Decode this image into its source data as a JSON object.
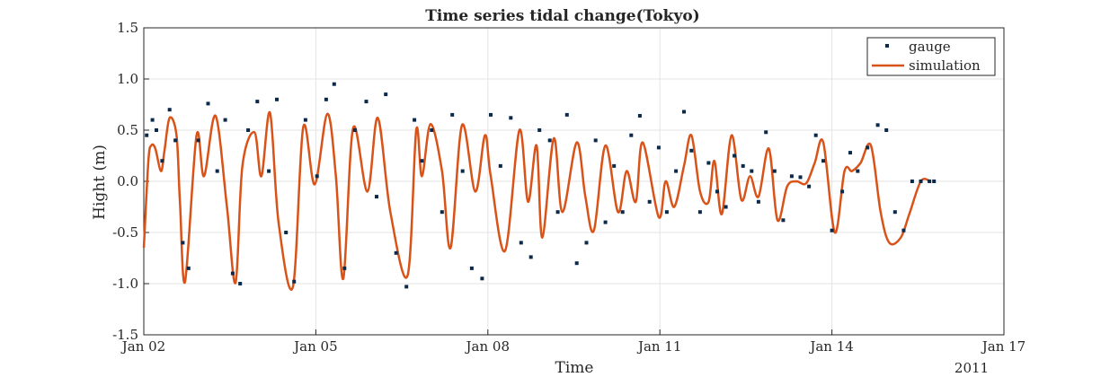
{
  "chart_data": {
    "type": "line",
    "title": "Time series tidal change(Tokyo)",
    "xlabel": "Time",
    "ylabel": "Hight (m)",
    "x_secondary_label": "2011",
    "xlim": [
      2,
      17
    ],
    "ylim": [
      -1.5,
      1.5
    ],
    "xticks": [
      2,
      5,
      8,
      11,
      14,
      17
    ],
    "xtick_labels": [
      "Jan 02",
      "Jan 05",
      "Jan 08",
      "Jan 11",
      "Jan 14",
      "Jan 17"
    ],
    "yticks": [
      -1.5,
      -1.0,
      -0.5,
      0.0,
      0.5,
      1.0,
      1.5
    ],
    "ytick_labels": [
      "-1.5",
      "-1.0",
      "-0.5",
      "0.0",
      "0.5",
      "1.0",
      "1.5"
    ],
    "grid": true,
    "legend_position": "top-right",
    "series": [
      {
        "name": "simulation",
        "style": "line",
        "color": "#d95319",
        "x": [
          2.0,
          2.08,
          2.13,
          2.2,
          2.3,
          2.36,
          2.45,
          2.57,
          2.63,
          2.72,
          2.92,
          3.05,
          3.25,
          3.45,
          3.6,
          3.72,
          3.93,
          4.05,
          4.2,
          4.35,
          4.6,
          4.78,
          4.98,
          5.2,
          5.35,
          5.48,
          5.65,
          5.9,
          6.08,
          6.3,
          6.6,
          6.75,
          6.85,
          7.0,
          7.2,
          7.35,
          7.55,
          7.78,
          7.95,
          8.05,
          8.3,
          8.55,
          8.7,
          8.85,
          8.95,
          9.15,
          9.3,
          9.55,
          9.7,
          9.85,
          10.05,
          10.27,
          10.42,
          10.58,
          10.7,
          10.98,
          11.1,
          11.25,
          11.42,
          11.55,
          11.7,
          11.85,
          11.95,
          12.08,
          12.25,
          12.42,
          12.57,
          12.72,
          12.9,
          13.05,
          13.22,
          13.38,
          13.55,
          13.7,
          13.85,
          14.05,
          14.22,
          14.35,
          14.5,
          14.68,
          14.85,
          15.0,
          15.2,
          15.35,
          15.55,
          15.72,
          15.78
        ],
        "y": [
          -0.65,
          0.2,
          0.35,
          0.32,
          0.1,
          0.3,
          0.62,
          0.45,
          -0.2,
          -0.98,
          0.45,
          0.05,
          0.64,
          -0.25,
          -0.99,
          0.15,
          0.48,
          0.05,
          0.67,
          -0.4,
          -1.03,
          0.53,
          -0.03,
          0.66,
          0.05,
          -0.95,
          0.52,
          -0.1,
          0.62,
          -0.3,
          -0.92,
          0.5,
          0.05,
          0.56,
          0.1,
          -0.65,
          0.55,
          -0.1,
          0.45,
          0.05,
          -0.68,
          0.5,
          -0.2,
          0.35,
          -0.55,
          0.42,
          -0.3,
          0.38,
          -0.15,
          -0.48,
          0.35,
          -0.3,
          0.1,
          -0.2,
          0.38,
          -0.35,
          0.0,
          -0.25,
          0.15,
          0.45,
          -0.1,
          -0.2,
          0.2,
          -0.32,
          0.45,
          -0.18,
          0.05,
          -0.15,
          0.32,
          -0.38,
          -0.05,
          0.0,
          -0.02,
          0.18,
          0.38,
          -0.5,
          0.1,
          0.1,
          0.18,
          0.35,
          -0.3,
          -0.6,
          -0.55,
          -0.32,
          0,
          0,
          0
        ]
      },
      {
        "name": "gauge",
        "style": "points",
        "color": "#0b2a4a",
        "x": [
          2.05,
          2.15,
          2.22,
          2.32,
          2.45,
          2.55,
          2.68,
          2.78,
          2.95,
          3.12,
          3.28,
          3.42,
          3.55,
          3.68,
          3.82,
          3.98,
          4.18,
          4.32,
          4.48,
          4.62,
          4.82,
          5.02,
          5.18,
          5.32,
          5.5,
          5.68,
          5.88,
          6.06,
          6.22,
          6.4,
          6.58,
          6.72,
          6.85,
          7.02,
          7.2,
          7.38,
          7.56,
          7.72,
          7.9,
          8.05,
          8.22,
          8.4,
          8.58,
          8.75,
          8.9,
          9.08,
          9.22,
          9.38,
          9.55,
          9.72,
          9.88,
          10.05,
          10.2,
          10.35,
          10.5,
          10.65,
          10.82,
          10.98,
          11.12,
          11.28,
          11.42,
          11.55,
          11.7,
          11.85,
          12.0,
          12.15,
          12.3,
          12.45,
          12.6,
          12.72,
          12.85,
          13.0,
          13.15,
          13.3,
          13.45,
          13.6,
          13.72,
          13.85,
          14.0,
          14.18,
          14.32,
          14.45,
          14.62,
          14.8,
          14.95,
          15.1,
          15.25,
          15.4,
          15.55,
          15.7,
          15.78
        ],
        "y": [
          0.45,
          0.6,
          0.5,
          0.2,
          0.7,
          0.4,
          -0.6,
          -0.85,
          0.4,
          0.76,
          0.1,
          0.6,
          -0.9,
          -1.0,
          0.5,
          0.78,
          0.1,
          0.8,
          -0.5,
          -0.98,
          0.6,
          0.05,
          0.8,
          0.95,
          -0.85,
          0.5,
          0.78,
          -0.15,
          0.85,
          -0.7,
          -1.03,
          0.6,
          0.2,
          0.5,
          -0.3,
          0.65,
          0.1,
          -0.85,
          -0.95,
          0.65,
          0.15,
          0.62,
          -0.6,
          -0.74,
          0.5,
          0.4,
          -0.3,
          0.65,
          -0.8,
          -0.6,
          0.4,
          -0.4,
          0.15,
          -0.3,
          0.45,
          0.64,
          -0.2,
          0.33,
          -0.3,
          0.1,
          0.68,
          0.3,
          -0.3,
          0.18,
          -0.1,
          -0.25,
          0.25,
          0.15,
          0.1,
          -0.2,
          0.48,
          0.1,
          -0.38,
          0.05,
          0.04,
          -0.05,
          0.45,
          0.2,
          -0.48,
          -0.1,
          0.28,
          0.1,
          0.33,
          0.55,
          0.5,
          -0.3,
          -0.48,
          0.0,
          0,
          0,
          0
        ]
      }
    ]
  }
}
